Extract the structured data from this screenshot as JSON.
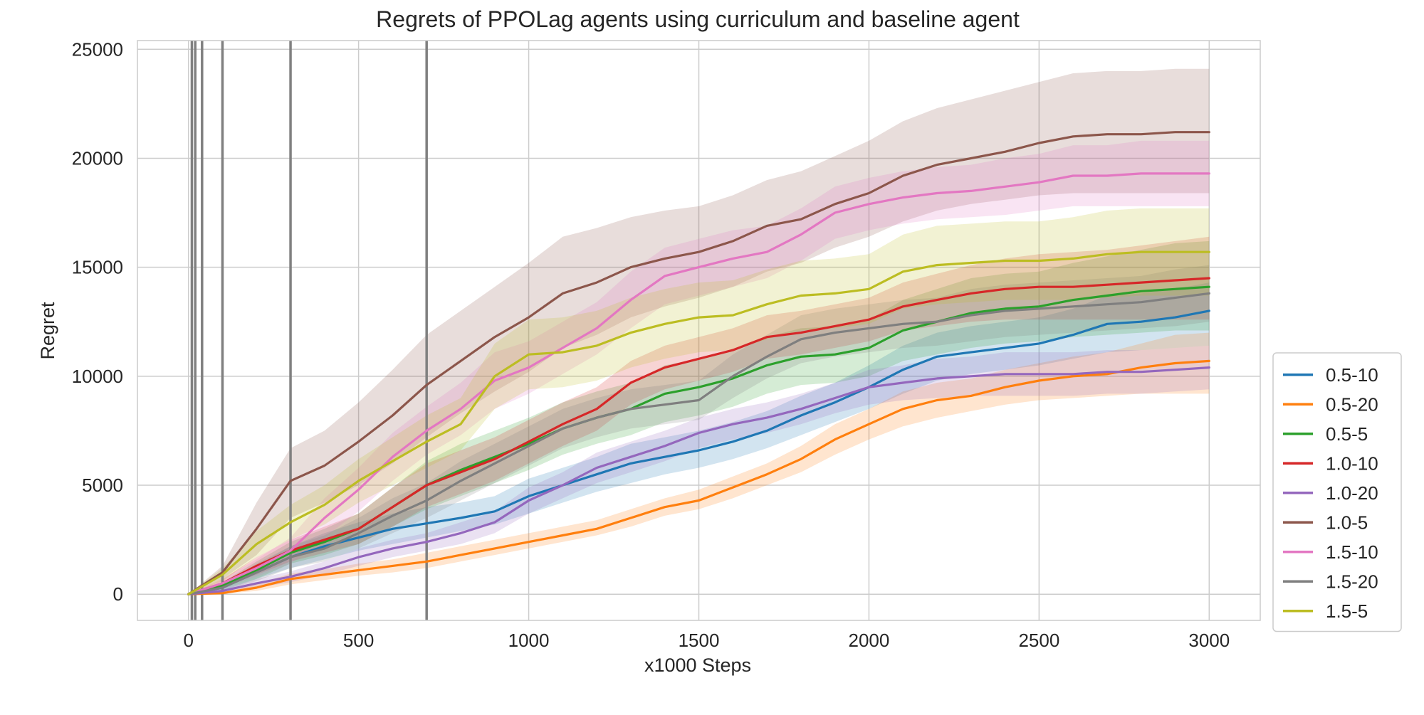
{
  "chart_data": {
    "type": "line",
    "title": "Regrets of PPOLag agents using curriculum and baseline agent",
    "xlabel": "x1000 Steps",
    "ylabel": "Regret",
    "xlim": [
      -150,
      3150
    ],
    "ylim": [
      -1200,
      25400
    ],
    "xticks": [
      0,
      500,
      1000,
      1500,
      2000,
      2500,
      3000
    ],
    "yticks": [
      0,
      5000,
      10000,
      15000,
      20000,
      25000
    ],
    "grid": true,
    "legend_position": "right",
    "vlines": [
      10,
      20,
      40,
      100,
      300,
      700
    ],
    "vline_color": "#808080",
    "x": [
      0,
      100,
      200,
      300,
      400,
      500,
      600,
      700,
      800,
      900,
      1000,
      1100,
      1200,
      1300,
      1400,
      1500,
      1600,
      1700,
      1800,
      1900,
      2000,
      2100,
      2200,
      2300,
      2400,
      2500,
      2600,
      2700,
      2800,
      2900,
      3000
    ],
    "series": [
      {
        "name": "0.5-10",
        "color": "#1f77b4",
        "values": [
          0,
          300,
          1000,
          1700,
          2200,
          2600,
          3000,
          3250,
          3500,
          3800,
          4500,
          5000,
          5500,
          6000,
          6300,
          6600,
          7000,
          7500,
          8200,
          8800,
          9500,
          10300,
          10900,
          11100,
          11300,
          11500,
          11900,
          12400,
          12500,
          12700,
          13000
        ],
        "lower": [
          0,
          150,
          700,
          1200,
          1600,
          2000,
          2300,
          2600,
          2900,
          3200,
          3700,
          4200,
          4700,
          5100,
          5500,
          5800,
          6200,
          6700,
          7300,
          7900,
          8500,
          9200,
          9800,
          10100,
          10300,
          10500,
          10800,
          11100,
          11200,
          11300,
          11400
        ],
        "upper": [
          0,
          450,
          1300,
          2200,
          2800,
          3300,
          3700,
          4000,
          4200,
          4500,
          5300,
          5800,
          6300,
          6900,
          7200,
          7500,
          7900,
          8400,
          9100,
          9700,
          10500,
          11400,
          12000,
          12300,
          12500,
          12700,
          13100,
          13700,
          13800,
          14000,
          14300
        ]
      },
      {
        "name": "0.5-20",
        "color": "#ff7f0e",
        "values": [
          0,
          50,
          300,
          700,
          900,
          1100,
          1300,
          1500,
          1800,
          2100,
          2400,
          2700,
          3000,
          3500,
          4000,
          4300,
          4900,
          5500,
          6200,
          7100,
          7800,
          8500,
          8900,
          9100,
          9500,
          9800,
          10000,
          10100,
          10400,
          10600,
          10700
        ],
        "lower": [
          0,
          20,
          150,
          450,
          650,
          850,
          1000,
          1200,
          1500,
          1800,
          2100,
          2400,
          2700,
          3100,
          3600,
          3900,
          4400,
          5000,
          5600,
          6400,
          7100,
          7700,
          8100,
          8400,
          8700,
          8900,
          9000,
          9100,
          9200,
          9200,
          9200
        ],
        "upper": [
          0,
          80,
          450,
          950,
          1150,
          1400,
          1600,
          1900,
          2200,
          2500,
          2800,
          3100,
          3400,
          3900,
          4400,
          4800,
          5400,
          6000,
          6800,
          7800,
          8500,
          9300,
          9700,
          9900,
          10300,
          10600,
          10900,
          11100,
          11500,
          11900,
          12000
        ]
      },
      {
        "name": "0.5-5",
        "color": "#2ca02c",
        "values": [
          0,
          400,
          1100,
          1900,
          2400,
          3000,
          4000,
          5000,
          5700,
          6300,
          6900,
          7600,
          8100,
          8500,
          9200,
          9500,
          9900,
          10500,
          10900,
          11000,
          11300,
          12100,
          12500,
          12900,
          13100,
          13200,
          13500,
          13700,
          13900,
          14000,
          14100
        ],
        "lower": [
          0,
          250,
          700,
          1400,
          1800,
          2300,
          3100,
          3900,
          4500,
          5100,
          5700,
          6400,
          6900,
          7300,
          7900,
          8200,
          8600,
          9200,
          9600,
          9700,
          10000,
          10700,
          11000,
          11300,
          11500,
          11600,
          11800,
          11900,
          12000,
          12100,
          12100
        ],
        "upper": [
          0,
          550,
          1500,
          2400,
          3000,
          3700,
          4900,
          6100,
          6900,
          7500,
          8100,
          8800,
          9300,
          9700,
          10500,
          10800,
          11200,
          11800,
          12200,
          12300,
          12600,
          13500,
          14000,
          14500,
          14700,
          14800,
          15200,
          15500,
          15800,
          16100,
          16200
        ]
      },
      {
        "name": "1.0-10",
        "color": "#d62728",
        "values": [
          0,
          500,
          1300,
          2000,
          2500,
          3000,
          4000,
          5000,
          5600,
          6200,
          7000,
          7800,
          8500,
          9700,
          10400,
          10800,
          11200,
          11800,
          12000,
          12300,
          12600,
          13200,
          13500,
          13800,
          14000,
          14100,
          14100,
          14200,
          14300,
          14400,
          14500
        ],
        "lower": [
          0,
          300,
          900,
          1500,
          1900,
          2300,
          3100,
          4000,
          4600,
          5200,
          6000,
          6800,
          7500,
          8700,
          9400,
          9800,
          10200,
          10800,
          11000,
          11300,
          11600,
          12100,
          12300,
          12500,
          12600,
          12600,
          12600,
          12600,
          12600,
          12600,
          12600
        ],
        "upper": [
          0,
          700,
          1700,
          2500,
          3100,
          3700,
          4900,
          6000,
          6600,
          7200,
          8000,
          8800,
          9500,
          10700,
          11400,
          11800,
          12200,
          12800,
          13000,
          13300,
          13600,
          14300,
          14700,
          15100,
          15400,
          15600,
          15700,
          15800,
          16000,
          16200,
          16400
        ]
      },
      {
        "name": "1.0-20",
        "color": "#9467bd",
        "values": [
          0,
          150,
          500,
          800,
          1200,
          1700,
          2100,
          2400,
          2800,
          3300,
          4300,
          5000,
          5800,
          6300,
          6800,
          7400,
          7800,
          8100,
          8500,
          9000,
          9500,
          9700,
          9900,
          10000,
          10100,
          10100,
          10100,
          10200,
          10200,
          10300,
          10400
        ],
        "lower": [
          0,
          80,
          300,
          550,
          900,
          1300,
          1700,
          2000,
          2300,
          2800,
          3700,
          4400,
          5100,
          5600,
          6100,
          6700,
          7100,
          7400,
          7800,
          8300,
          8700,
          8900,
          9000,
          9100,
          9100,
          9100,
          9100,
          9200,
          9200,
          9300,
          9400
        ],
        "upper": [
          0,
          250,
          700,
          1050,
          1500,
          2100,
          2500,
          2800,
          3300,
          3800,
          4900,
          5600,
          6500,
          7000,
          7500,
          8100,
          8500,
          8800,
          9200,
          9700,
          10300,
          10500,
          10800,
          10900,
          11100,
          11100,
          11100,
          11200,
          11200,
          11300,
          11400
        ]
      },
      {
        "name": "1.0-5",
        "color": "#8c564b",
        "values": [
          0,
          1000,
          3000,
          5200,
          5900,
          7000,
          8200,
          9600,
          10700,
          11800,
          12700,
          13800,
          14300,
          15000,
          15400,
          15700,
          16200,
          16900,
          17200,
          17900,
          18400,
          19200,
          19700,
          20000,
          20300,
          20700,
          21000,
          21100,
          21100,
          21200,
          21200
        ],
        "lower": [
          0,
          700,
          1800,
          3500,
          4200,
          5000,
          6000,
          7200,
          8300,
          9300,
          10200,
          11300,
          11900,
          12700,
          13200,
          13600,
          14100,
          14800,
          15200,
          15900,
          16400,
          17100,
          17600,
          17900,
          18100,
          18300,
          18400,
          18400,
          18400,
          18400,
          18400
        ],
        "upper": [
          0,
          1300,
          4200,
          6700,
          7500,
          8800,
          10300,
          11900,
          13000,
          14100,
          15200,
          16400,
          16800,
          17300,
          17600,
          17800,
          18300,
          19000,
          19400,
          20100,
          20800,
          21700,
          22300,
          22700,
          23100,
          23500,
          23900,
          24000,
          24000,
          24100,
          24100
        ]
      },
      {
        "name": "1.5-10",
        "color": "#e377c2",
        "values": [
          0,
          500,
          1200,
          2000,
          3500,
          4800,
          6300,
          7500,
          8500,
          9800,
          10400,
          11300,
          12200,
          13500,
          14600,
          15000,
          15400,
          15700,
          16500,
          17500,
          17900,
          18200,
          18400,
          18500,
          18700,
          18900,
          19200,
          19200,
          19300,
          19300,
          19300
        ],
        "lower": [
          0,
          300,
          800,
          1400,
          2600,
          3800,
          5200,
          6400,
          7300,
          8500,
          9200,
          10100,
          11000,
          12200,
          13300,
          13700,
          14100,
          14500,
          15300,
          16300,
          16700,
          17000,
          17200,
          17300,
          17400,
          17600,
          17800,
          17800,
          17800,
          17800,
          17800
        ],
        "upper": [
          0,
          700,
          1600,
          2600,
          4400,
          5800,
          7400,
          8600,
          9700,
          11100,
          11600,
          12500,
          13400,
          14800,
          15900,
          16300,
          16700,
          16900,
          17700,
          18700,
          19100,
          19400,
          19600,
          19700,
          20000,
          20200,
          20600,
          20600,
          20800,
          20800,
          20800
        ]
      },
      {
        "name": "1.5-20",
        "color": "#7f7f7f",
        "values": [
          0,
          300,
          1000,
          1700,
          2100,
          2800,
          3600,
          4300,
          5200,
          6000,
          6800,
          7600,
          8100,
          8500,
          8700,
          8900,
          10000,
          10900,
          11700,
          12000,
          12200,
          12400,
          12500,
          12800,
          13000,
          13100,
          13200,
          13300,
          13400,
          13600,
          13800
        ],
        "lower": [
          0,
          150,
          600,
          1200,
          1500,
          2100,
          2800,
          3500,
          4300,
          5100,
          5900,
          6700,
          7200,
          7600,
          7800,
          8000,
          9000,
          9900,
          10600,
          10900,
          11100,
          11300,
          11400,
          11600,
          11800,
          11900,
          12000,
          12100,
          12200,
          12300,
          12500
        ],
        "upper": [
          0,
          450,
          1400,
          2200,
          2700,
          3500,
          4400,
          5100,
          6100,
          6900,
          7700,
          8500,
          9000,
          9400,
          9600,
          9800,
          11000,
          11900,
          12800,
          13100,
          13300,
          13500,
          13600,
          14000,
          14200,
          14300,
          14400,
          14500,
          14600,
          14900,
          15100
        ]
      },
      {
        "name": "1.5-5",
        "color": "#bcbd22",
        "values": [
          0,
          900,
          2300,
          3300,
          4100,
          5200,
          6100,
          7000,
          7800,
          10000,
          11000,
          11100,
          11400,
          12000,
          12400,
          12700,
          12800,
          13300,
          13700,
          13800,
          14000,
          14800,
          15100,
          15200,
          15300,
          15300,
          15400,
          15600,
          15700,
          15700,
          15700
        ],
        "lower": [
          0,
          600,
          1700,
          2500,
          3200,
          4200,
          5000,
          5800,
          6600,
          8500,
          9400,
          9500,
          9800,
          10400,
          10800,
          11100,
          11200,
          11700,
          12100,
          12200,
          12400,
          13100,
          13300,
          13400,
          13500,
          13500,
          13500,
          13600,
          13700,
          13700,
          13700
        ],
        "upper": [
          0,
          1200,
          2900,
          4100,
          5000,
          6200,
          7200,
          8200,
          9000,
          11500,
          12600,
          12700,
          13000,
          13600,
          14000,
          14300,
          14400,
          14900,
          15300,
          15400,
          15600,
          16500,
          16900,
          17000,
          17100,
          17100,
          17300,
          17600,
          17700,
          17700,
          17700
        ]
      }
    ]
  }
}
